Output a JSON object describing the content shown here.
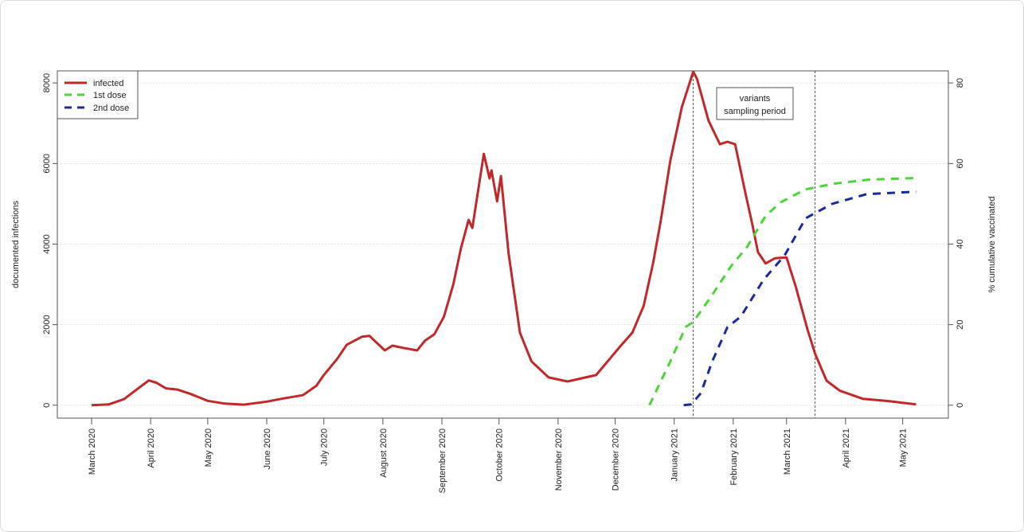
{
  "chart_data": {
    "type": "line",
    "title": "",
    "xlabel": "",
    "ylabel": "documented infections",
    "ylabel_right": "% cumulative vaccinated",
    "xlim": [
      "2020-02-12",
      "2021-05-25"
    ],
    "ylim": [
      -320,
      8300
    ],
    "ylim_right": [
      -3.2,
      83
    ],
    "yticks": [
      0,
      2000,
      4000,
      6000,
      8000
    ],
    "yticks_right": [
      0,
      20,
      40,
      60,
      80
    ],
    "xticks": [
      {
        "date": "2020-03-01",
        "label": "March 2020"
      },
      {
        "date": "2020-04-01",
        "label": "April 2020"
      },
      {
        "date": "2020-05-01",
        "label": "May 2020"
      },
      {
        "date": "2020-06-01",
        "label": "June 2020"
      },
      {
        "date": "2020-07-01",
        "label": "July 2020"
      },
      {
        "date": "2020-08-01",
        "label": "August 2020"
      },
      {
        "date": "2020-09-01",
        "label": "September 2020"
      },
      {
        "date": "2020-10-01",
        "label": "October 2020"
      },
      {
        "date": "2020-11-01",
        "label": "November 2020"
      },
      {
        "date": "2020-12-01",
        "label": "December 2020"
      },
      {
        "date": "2021-01-01",
        "label": "January 2021"
      },
      {
        "date": "2021-02-01",
        "label": "February 2021"
      },
      {
        "date": "2021-03-01",
        "label": "March 2021"
      },
      {
        "date": "2021-04-01",
        "label": "April 2021"
      },
      {
        "date": "2021-05-01",
        "label": "May 2021"
      }
    ],
    "grid": "horizontal dotted",
    "legend_position": "top-left",
    "colors": {
      "infected": "#c0282b",
      "first_dose": "#4cd43a",
      "second_dose": "#1a2a9c"
    },
    "series": [
      {
        "name": "infected",
        "axis": "left",
        "style": "solid",
        "points": [
          [
            "2020-03-01",
            0
          ],
          [
            "2020-03-10",
            20
          ],
          [
            "2020-03-18",
            150
          ],
          [
            "2020-03-25",
            400
          ],
          [
            "2020-03-31",
            615
          ],
          [
            "2020-04-04",
            560
          ],
          [
            "2020-04-09",
            420
          ],
          [
            "2020-04-15",
            390
          ],
          [
            "2020-04-22",
            280
          ],
          [
            "2020-05-01",
            110
          ],
          [
            "2020-05-10",
            40
          ],
          [
            "2020-05-20",
            15
          ],
          [
            "2020-06-01",
            90
          ],
          [
            "2020-06-10",
            170
          ],
          [
            "2020-06-20",
            250
          ],
          [
            "2020-06-27",
            480
          ],
          [
            "2020-07-01",
            750
          ],
          [
            "2020-07-08",
            1150
          ],
          [
            "2020-07-13",
            1500
          ],
          [
            "2020-07-21",
            1700
          ],
          [
            "2020-07-25",
            1720
          ],
          [
            "2020-08-02",
            1360
          ],
          [
            "2020-08-06",
            1480
          ],
          [
            "2020-08-12",
            1420
          ],
          [
            "2020-08-19",
            1360
          ],
          [
            "2020-08-23",
            1600
          ],
          [
            "2020-08-28",
            1760
          ],
          [
            "2020-09-02",
            2190
          ],
          [
            "2020-09-07",
            3000
          ],
          [
            "2020-09-11",
            3900
          ],
          [
            "2020-09-15",
            4600
          ],
          [
            "2020-09-17",
            4400
          ],
          [
            "2020-09-23",
            6240
          ],
          [
            "2020-09-26",
            5630
          ],
          [
            "2020-09-27",
            5830
          ],
          [
            "2020-09-30",
            5060
          ],
          [
            "2020-10-02",
            5690
          ],
          [
            "2020-10-06",
            3770
          ],
          [
            "2020-10-12",
            1800
          ],
          [
            "2020-10-18",
            1090
          ],
          [
            "2020-10-27",
            690
          ],
          [
            "2020-11-06",
            590
          ],
          [
            "2020-11-21",
            750
          ],
          [
            "2020-12-04",
            1480
          ],
          [
            "2020-12-10",
            1800
          ],
          [
            "2020-12-16",
            2470
          ],
          [
            "2020-12-21",
            3550
          ],
          [
            "2020-12-25",
            4600
          ],
          [
            "2020-12-30",
            6080
          ],
          [
            "2021-01-05",
            7400
          ],
          [
            "2021-01-11",
            8280
          ],
          [
            "2021-01-13",
            8100
          ],
          [
            "2021-01-19",
            7070
          ],
          [
            "2021-01-25",
            6480
          ],
          [
            "2021-01-29",
            6540
          ],
          [
            "2021-02-02",
            6480
          ],
          [
            "2021-02-07",
            5350
          ],
          [
            "2021-02-11",
            4500
          ],
          [
            "2021-02-14",
            3800
          ],
          [
            "2021-02-18",
            3520
          ],
          [
            "2021-02-23",
            3650
          ],
          [
            "2021-03-01",
            3670
          ],
          [
            "2021-03-06",
            2920
          ],
          [
            "2021-03-12",
            1880
          ],
          [
            "2021-03-16",
            1280
          ],
          [
            "2021-03-22",
            610
          ],
          [
            "2021-03-29",
            360
          ],
          [
            "2021-04-10",
            160
          ],
          [
            "2021-04-24",
            100
          ],
          [
            "2021-05-08",
            20
          ]
        ]
      },
      {
        "name": "1st dose",
        "axis": "right",
        "style": "dashed",
        "points": [
          [
            "2020-12-19",
            0
          ],
          [
            "2020-12-30",
            10.9
          ],
          [
            "2021-01-07",
            19.4
          ],
          [
            "2021-01-11",
            20.7
          ],
          [
            "2021-01-20",
            26.7
          ],
          [
            "2021-01-31",
            34.6
          ],
          [
            "2021-02-08",
            39.1
          ],
          [
            "2021-02-18",
            47
          ],
          [
            "2021-02-26",
            50.4
          ],
          [
            "2021-03-11",
            53.6
          ],
          [
            "2021-03-26",
            55
          ],
          [
            "2021-04-13",
            56
          ],
          [
            "2021-05-08",
            56.4
          ]
        ]
      },
      {
        "name": "2nd dose",
        "axis": "right",
        "style": "dashed",
        "points": [
          [
            "2021-01-06",
            0
          ],
          [
            "2021-01-10",
            0.2
          ],
          [
            "2021-01-15",
            3
          ],
          [
            "2021-01-21",
            10.9
          ],
          [
            "2021-01-29",
            19.4
          ],
          [
            "2021-02-05",
            22
          ],
          [
            "2021-02-17",
            31.2
          ],
          [
            "2021-02-28",
            37.2
          ],
          [
            "2021-03-11",
            46.4
          ],
          [
            "2021-03-25",
            50
          ],
          [
            "2021-04-12",
            52.4
          ],
          [
            "2021-05-08",
            53
          ]
        ]
      }
    ],
    "vlines": [
      "2021-01-11",
      "2021-03-16"
    ],
    "annotation": {
      "line1": "variants",
      "line2": "sampling period"
    }
  }
}
